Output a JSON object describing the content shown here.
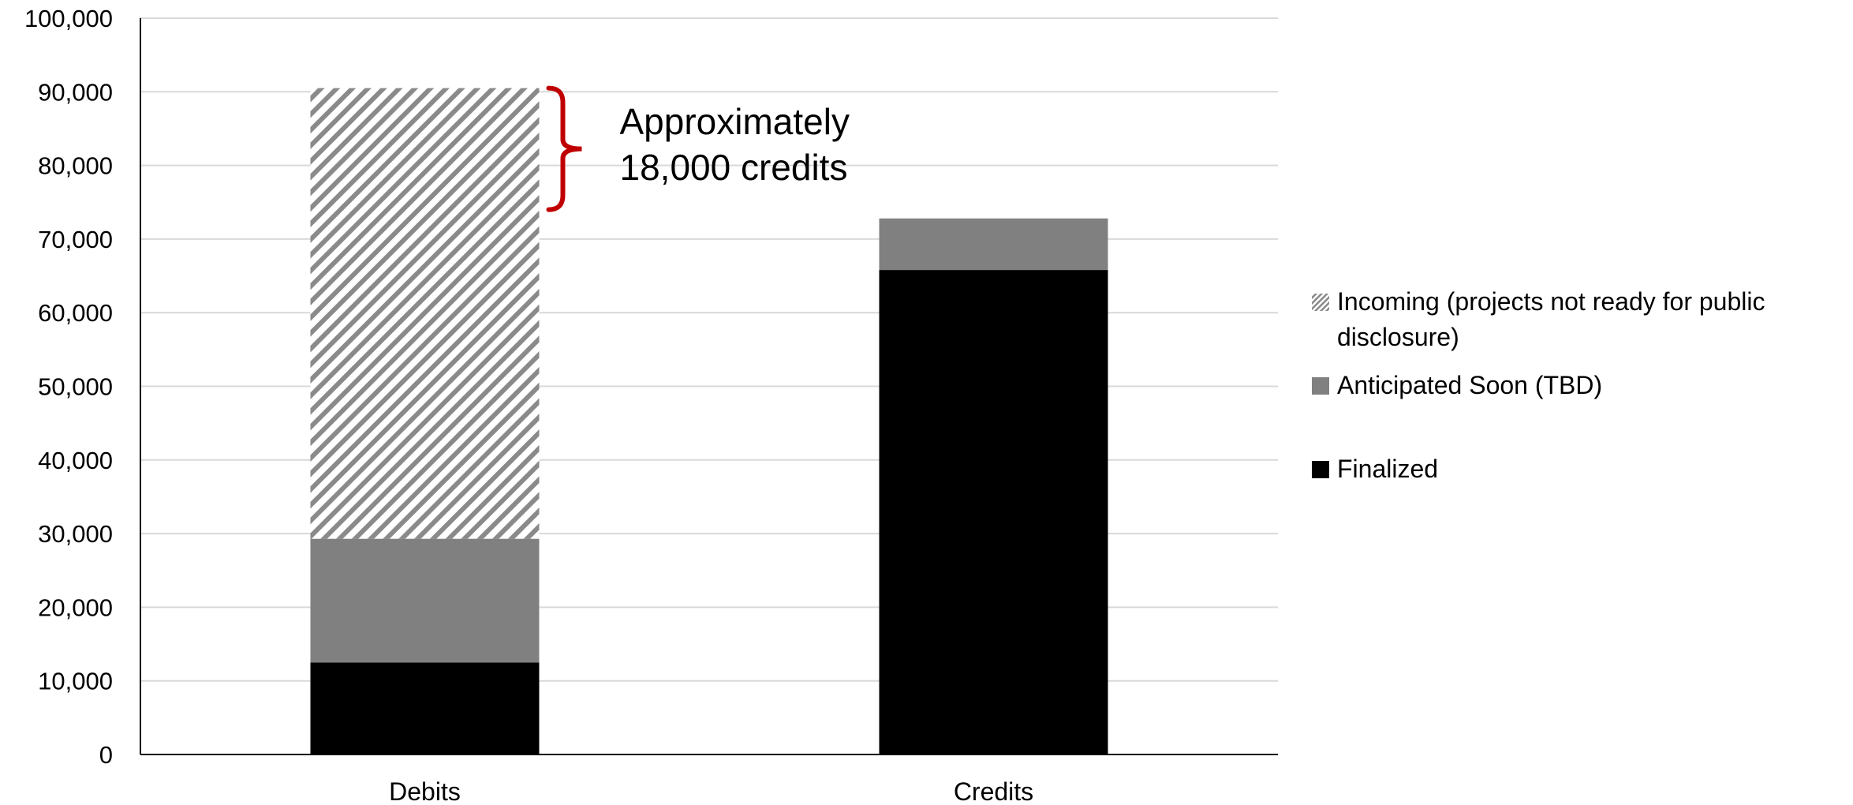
{
  "chart_data": {
    "type": "bar",
    "stacked": true,
    "categories": [
      "Debits",
      "Credits"
    ],
    "series": [
      {
        "name": "Finalized",
        "values": [
          12500,
          65800
        ],
        "color": "#000000",
        "pattern": "solid"
      },
      {
        "name": "Anticipated Soon (TBD)",
        "values": [
          16800,
          7000
        ],
        "color": "#808080",
        "pattern": "solid"
      },
      {
        "name": "Incoming (projects not ready for public disclosure)",
        "values": [
          61200,
          0
        ],
        "color": "#8a8a8a",
        "pattern": "diagonal-hatch"
      }
    ],
    "legend_order": [
      2,
      1,
      0
    ],
    "ylim": [
      0,
      100000
    ],
    "yticks": [
      0,
      10000,
      20000,
      30000,
      40000,
      50000,
      60000,
      70000,
      80000,
      90000,
      100000
    ],
    "ytick_labels": [
      "0",
      "10,000",
      "20,000",
      "30,000",
      "40,000",
      "50,000",
      "60,000",
      "70,000",
      "80,000",
      "90,000",
      "100,000"
    ],
    "grid": true,
    "legend_position": "right",
    "annotation": {
      "lines": [
        "Approximately",
        "18,000 credits"
      ],
      "bracket_range": [
        74000,
        90500
      ],
      "bracket_color": "#c00000",
      "category": "Debits"
    },
    "title": "",
    "xlabel": "",
    "ylabel": ""
  }
}
